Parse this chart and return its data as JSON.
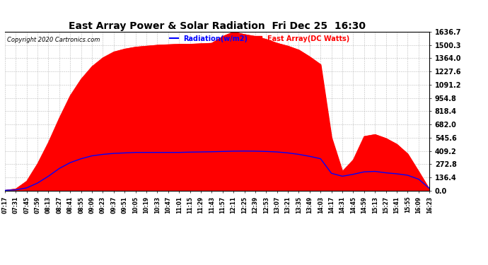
{
  "title": "East Array Power & Solar Radiation  Fri Dec 25  16:30",
  "copyright": "Copyright 2020 Cartronics.com",
  "legend_radiation": "Radiation(w/m2)",
  "legend_east": "East Array(DC Watts)",
  "ymax": 1636.7,
  "yticks": [
    0.0,
    136.4,
    272.8,
    409.2,
    545.6,
    682.0,
    818.4,
    954.8,
    1091.2,
    1227.6,
    1364.0,
    1500.3,
    1636.7
  ],
  "bg_color": "#ffffff",
  "plot_bg_color": "#ffffff",
  "grid_color": "#bbbbbb",
  "fill_color": "#ff0000",
  "line_color": "#0000ff",
  "title_color": "#000000",
  "copyright_color": "#000000",
  "xtick_labels": [
    "07:17",
    "07:31",
    "07:45",
    "07:59",
    "08:13",
    "08:27",
    "08:41",
    "08:55",
    "09:09",
    "09:23",
    "09:37",
    "09:51",
    "10:05",
    "10:19",
    "10:33",
    "10:47",
    "11:01",
    "11:15",
    "11:29",
    "11:43",
    "11:57",
    "12:11",
    "12:25",
    "12:39",
    "12:53",
    "13:07",
    "13:21",
    "13:35",
    "13:49",
    "14:03",
    "14:17",
    "14:31",
    "14:45",
    "14:59",
    "15:13",
    "15:27",
    "15:41",
    "15:55",
    "16:09",
    "16:23"
  ],
  "east_values": [
    5,
    20,
    100,
    280,
    500,
    750,
    980,
    1150,
    1280,
    1370,
    1430,
    1460,
    1480,
    1490,
    1500,
    1505,
    1510,
    1510,
    1515,
    1520,
    1590,
    1636,
    1610,
    1590,
    1560,
    1520,
    1490,
    1450,
    1380,
    1300,
    550,
    200,
    320,
    560,
    580,
    540,
    480,
    380,
    200,
    15
  ],
  "rad_values": [
    5,
    10,
    30,
    80,
    150,
    230,
    290,
    330,
    360,
    375,
    385,
    390,
    395,
    395,
    395,
    395,
    395,
    398,
    400,
    402,
    405,
    408,
    409,
    408,
    405,
    400,
    390,
    375,
    355,
    330,
    180,
    150,
    170,
    195,
    200,
    185,
    175,
    160,
    120,
    25
  ]
}
